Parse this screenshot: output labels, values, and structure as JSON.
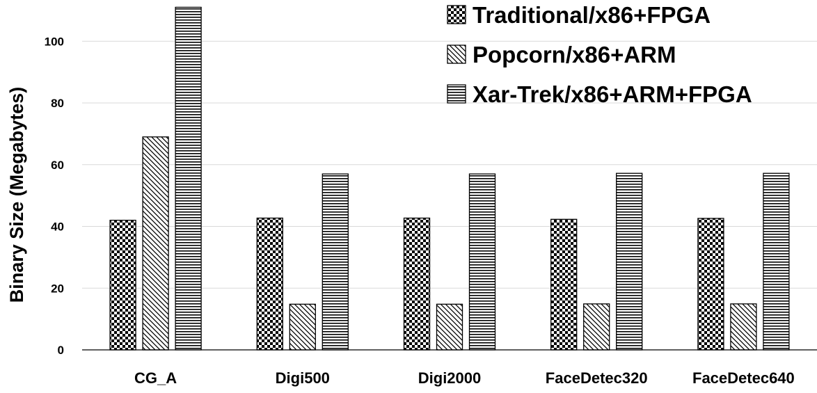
{
  "chart_data": {
    "type": "bar",
    "title": "",
    "xlabel": "",
    "ylabel": "Binary Size (Megabytes)",
    "ylim": [
      0,
      112
    ],
    "yticks": [
      0,
      20,
      40,
      60,
      80,
      100
    ],
    "grid": true,
    "legend": "top-right",
    "categories": [
      "CG_A",
      "Digi500",
      "Digi2000",
      "FaceDetec320",
      "FaceDetec640"
    ],
    "series": [
      {
        "name": "Traditional/x86+FPGA",
        "pattern": "checker",
        "values": [
          42,
          42.7,
          42.7,
          42.3,
          42.6
        ]
      },
      {
        "name": "Popcorn/x86+ARM",
        "pattern": "diagonal",
        "values": [
          69,
          14.8,
          14.8,
          14.9,
          14.9
        ]
      },
      {
        "name": "Xar-Trek/x86+ARM+FPGA",
        "pattern": "horizontal",
        "values": [
          111,
          57,
          57,
          57.2,
          57.2
        ]
      }
    ],
    "colors": {
      "fill": "#ffffff",
      "stroke": "#000000",
      "grid": "#d9d9d9"
    }
  }
}
